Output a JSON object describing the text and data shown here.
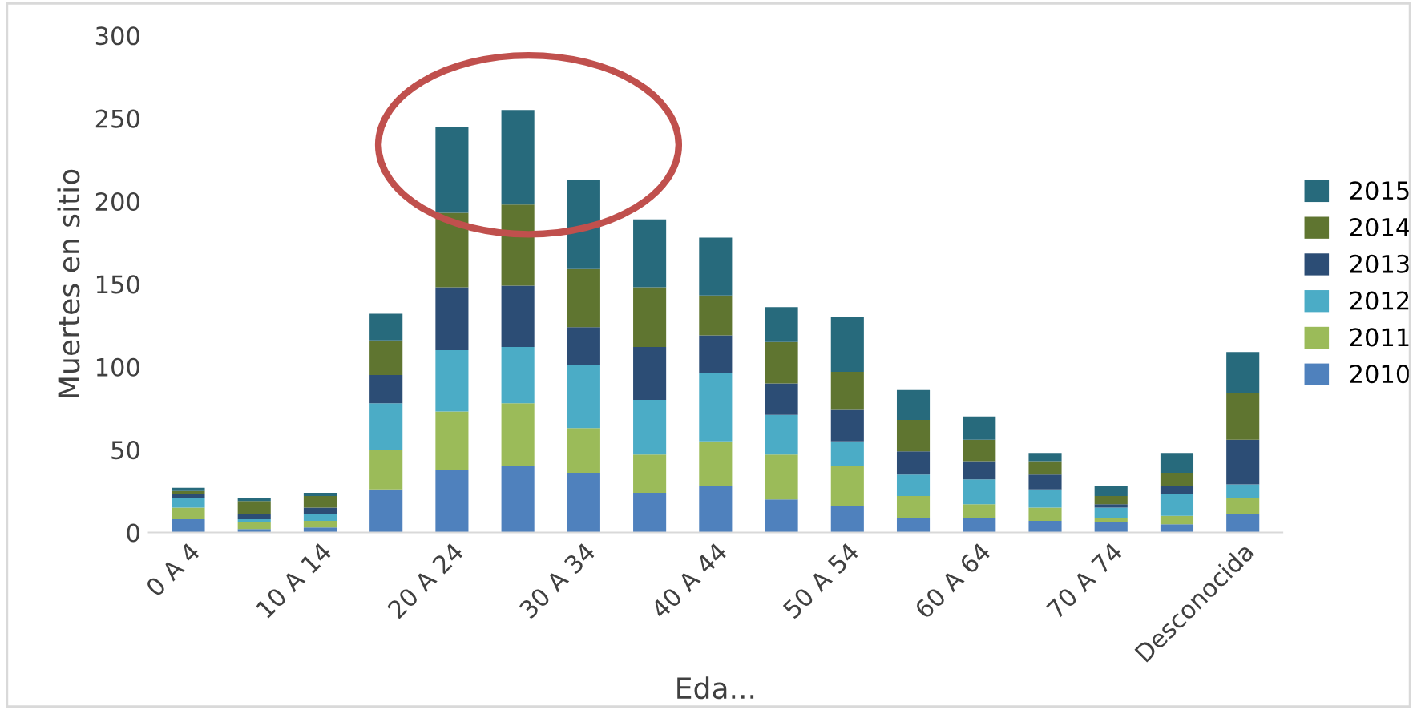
{
  "chart_data": {
    "type": "bar",
    "stacked": true,
    "ylabel": "Muertes en sitio",
    "xlabel": "Eda...",
    "categories": [
      "0 A 4",
      null,
      "10 A 14",
      null,
      "20 A 24",
      null,
      "30 A 34",
      null,
      "40 A 44",
      null,
      "50 A 54",
      null,
      "60 A 64",
      null,
      "70 A 74",
      null,
      "Desconocida"
    ],
    "series": [
      {
        "name": "2010",
        "color": "#4f81bd",
        "values": [
          8,
          2,
          3,
          26,
          38,
          40,
          36,
          24,
          28,
          20,
          16,
          9,
          9,
          7,
          6,
          5,
          11
        ]
      },
      {
        "name": "2011",
        "color": "#9bbb59",
        "values": [
          7,
          4,
          4,
          24,
          35,
          38,
          27,
          23,
          27,
          27,
          24,
          13,
          8,
          8,
          3,
          5,
          10
        ]
      },
      {
        "name": "2012",
        "color": "#4bacc6",
        "values": [
          6,
          2,
          4,
          28,
          37,
          34,
          38,
          33,
          41,
          24,
          15,
          13,
          15,
          11,
          6,
          13,
          8
        ]
      },
      {
        "name": "2013",
        "color": "#2c4d75",
        "values": [
          2,
          3,
          4,
          17,
          38,
          37,
          23,
          32,
          23,
          19,
          19,
          14,
          11,
          9,
          2,
          5,
          27
        ]
      },
      {
        "name": "2014",
        "color": "#5f7530",
        "values": [
          2,
          8,
          7,
          21,
          45,
          49,
          35,
          36,
          24,
          25,
          23,
          19,
          13,
          8,
          5,
          8,
          28
        ]
      },
      {
        "name": "2015",
        "color": "#276a7c",
        "values": [
          2,
          2,
          2,
          16,
          52,
          57,
          54,
          41,
          35,
          21,
          33,
          18,
          14,
          5,
          6,
          12,
          25
        ]
      }
    ],
    "ylim": [
      0,
      300
    ],
    "yticks": [
      0,
      50,
      100,
      150,
      200,
      250,
      300
    ],
    "grid": false,
    "legend": "right"
  }
}
